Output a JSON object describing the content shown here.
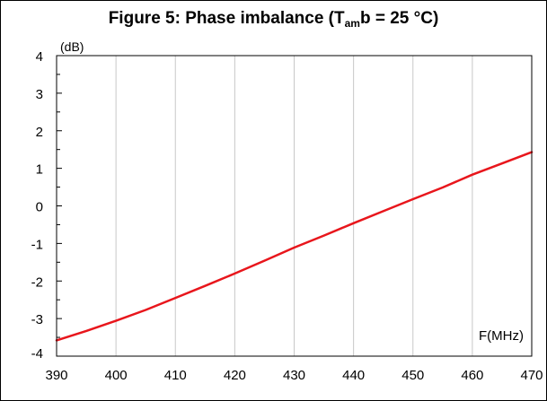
{
  "title": {
    "main": "Figure 5: Phase imbalance (T",
    "subscript": "am",
    "rest": "b = 25 °C)"
  },
  "chart_data": {
    "type": "line",
    "title": "Figure 5: Phase imbalance (Tamb = 25 °C)",
    "xlabel": "F(MHz)",
    "ylabel": "(dB)",
    "xlim": [
      390,
      470
    ],
    "ylim": [
      -4,
      4
    ],
    "xticks": [
      "390",
      "400",
      "410",
      "420",
      "430",
      "440",
      "450",
      "460",
      "470"
    ],
    "yticks": [
      "-4",
      "-3",
      "-2",
      "-1",
      "0",
      "1",
      "2",
      "3",
      "4"
    ],
    "grid": true,
    "series": [
      {
        "color": "#e8161c",
        "x": [
          390,
          395,
          400,
          405,
          410,
          415,
          420,
          425,
          430,
          435,
          440,
          445,
          450,
          455,
          460,
          465,
          470
        ],
        "y": [
          -3.58,
          -3.33,
          -3.06,
          -2.77,
          -2.45,
          -2.13,
          -1.8,
          -1.46,
          -1.11,
          -0.79,
          -0.46,
          -0.14,
          0.18,
          0.49,
          0.83,
          1.13,
          1.43
        ]
      }
    ]
  }
}
